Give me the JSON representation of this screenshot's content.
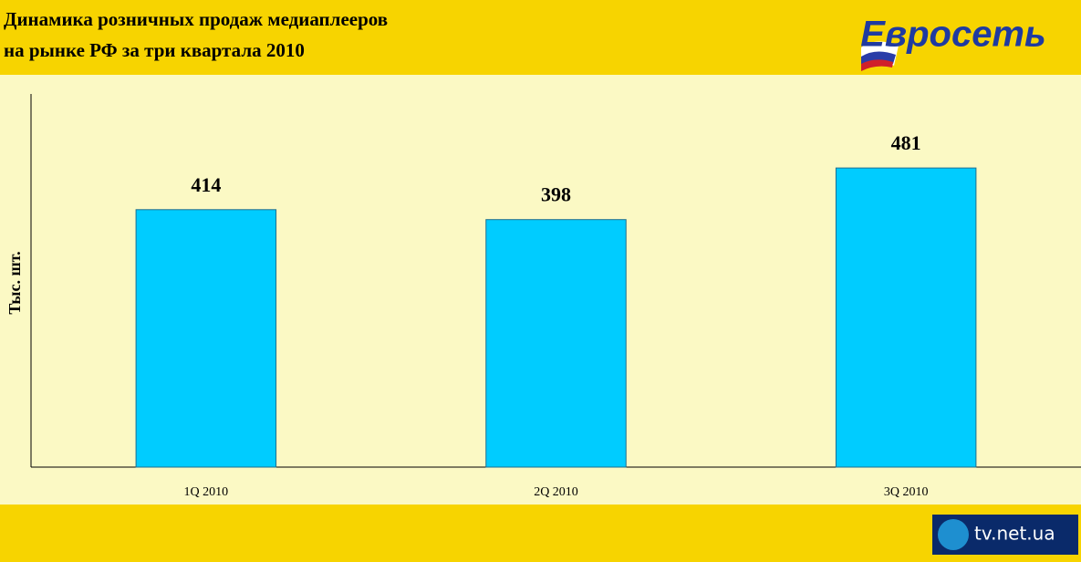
{
  "chart_data": {
    "type": "bar",
    "title": [
      "Динамика розничных продаж медиаплееров",
      "на рынке РФ за три квартала 2010"
    ],
    "y_label": "Тыс. шт.",
    "categories": [
      "1Q 2010",
      "2Q 2010",
      "3Q 2010"
    ],
    "values": [
      414,
      398,
      481
    ],
    "color": "#00ccff",
    "ylim": [
      0,
      600
    ]
  },
  "logo": "Евросеть",
  "watermark": "tv.net.ua"
}
